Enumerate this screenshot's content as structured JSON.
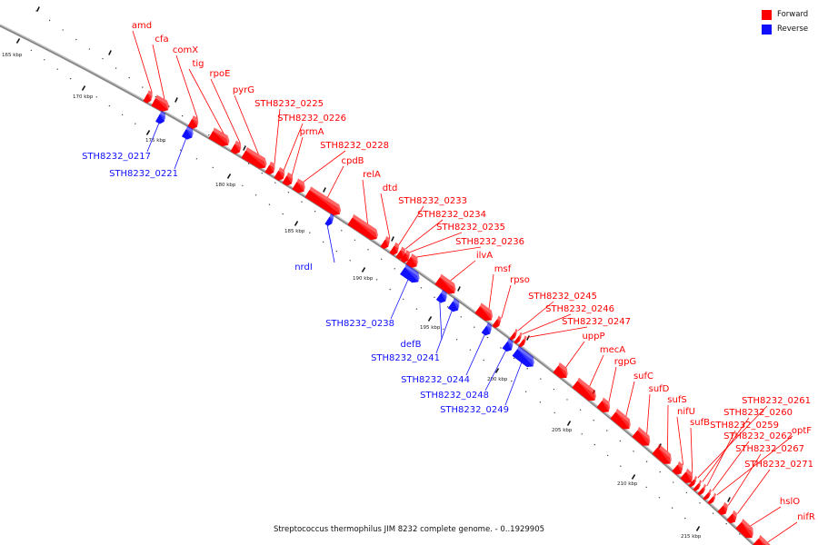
{
  "legend": {
    "forward_label": "Forward",
    "reverse_label": "Reverse",
    "forward_color": "#ff0000",
    "reverse_color": "#1010ff"
  },
  "caption": "Streptococcus thermophilus JIM 8232 complete genome. - 0..1929905",
  "backbone_color": "#888888",
  "ticks": [
    {
      "label": "165 kbp",
      "kbp": 165
    },
    {
      "label": "170 kbp",
      "kbp": 170
    },
    {
      "label": "175 kbp",
      "kbp": 175
    },
    {
      "label": "180 kbp",
      "kbp": 180
    },
    {
      "label": "185 kbp",
      "kbp": 185
    },
    {
      "label": "190 kbp",
      "kbp": 190
    },
    {
      "label": "195 kbp",
      "kbp": 195
    },
    {
      "label": "200 kbp",
      "kbp": 200
    },
    {
      "label": "205 kbp",
      "kbp": 205
    },
    {
      "label": "210 kbp",
      "kbp": 210
    },
    {
      "label": "215 kbp",
      "kbp": 215
    }
  ],
  "forward_genes": [
    "amd",
    "cfa",
    "comX",
    "tig",
    "rpoE",
    "pyrG",
    "STH8232_0225",
    "STH8232_0226",
    "prmA",
    "STH8232_0228",
    "cpdB",
    "relA",
    "dtd",
    "STH8232_0233",
    "STH8232_0234",
    "STH8232_0235",
    "STH8232_0236",
    "ilvA",
    "msf",
    "rpso",
    "STH8232_0245",
    "STH8232_0246",
    "STH8232_0247",
    "uppP",
    "mecA",
    "rgpG",
    "sufC",
    "sufD",
    "sufS",
    "nifU",
    "sufB",
    "STH8232_0261",
    "STH8232_0260",
    "STH8232_0259",
    "optF",
    "STH8232_0262",
    "STH8232_0267",
    "STH8232_0271",
    "hslO",
    "nifR"
  ],
  "reverse_genes": [
    "STH8232_0217",
    "STH8232_0221",
    "nrdI",
    "STH8232_0238",
    "defB",
    "STH8232_0241",
    "STH8232_0244",
    "STH8232_0248",
    "STH8232_0249"
  ]
}
